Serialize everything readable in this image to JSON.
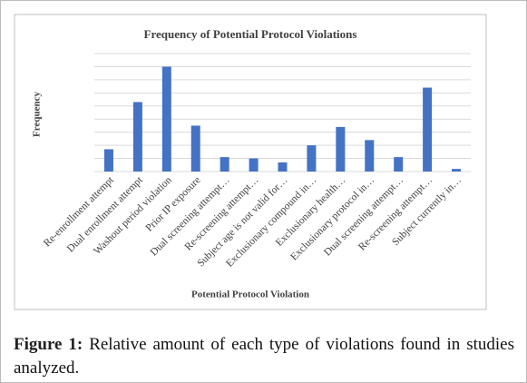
{
  "chart_data": {
    "type": "bar",
    "title": "Frequency of Potential Protocol Violations",
    "x_label": "Potential Protocol Violation",
    "y_label": "Frequency",
    "categories": [
      "Re-enrollment attempt",
      "Dual enrollment attempt",
      "Washout period violation",
      "Prior IP exposure",
      "Dual screening attempt…",
      "Re-screening attempt…",
      "Subject age is not valid for…",
      "Exclusionary compound in…",
      "Exclusionary health…",
      "Exclusionary protocol in…",
      "Dual screening attempt…",
      "Re-screening attempt…",
      "Subject currently in…"
    ],
    "values": [
      1.7,
      5.3,
      8.0,
      3.5,
      1.1,
      1.0,
      0.7,
      2.0,
      3.4,
      2.4,
      1.1,
      6.4,
      0.2
    ],
    "color": "#4472c4",
    "ylim": [
      0,
      9
    ],
    "yticks": [
      0,
      1,
      2,
      3,
      4,
      5,
      6,
      7,
      8,
      9
    ],
    "grid": true
  },
  "caption": {
    "label": "Figure 1:",
    "text": "Relative amount of each type of violations found in studies analyzed."
  }
}
